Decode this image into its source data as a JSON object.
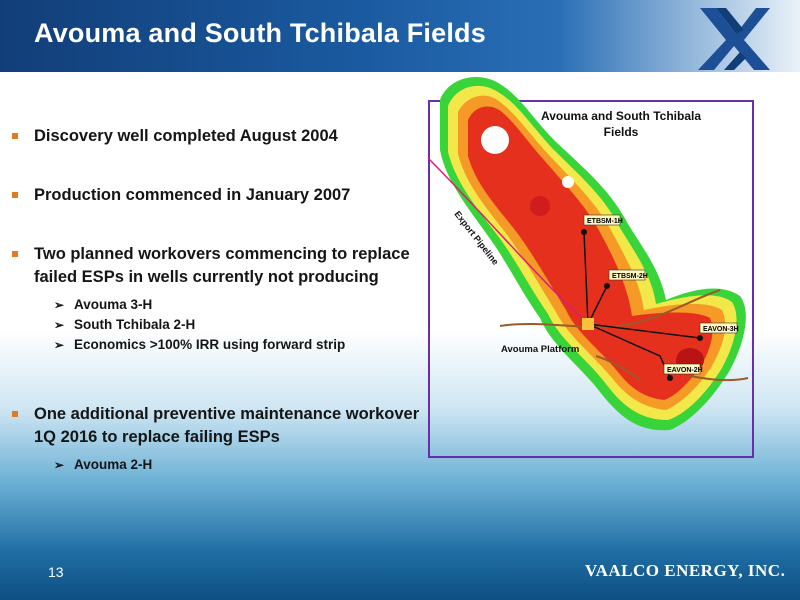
{
  "slide": {
    "title": "Avouma and South Tchibala Fields",
    "page_number": "13",
    "company": "VAALCO ENERGY, INC."
  },
  "bullets": [
    {
      "text": "Discovery well completed August 2004",
      "subs": []
    },
    {
      "text": "Production commenced in January 2007",
      "subs": []
    },
    {
      "text": "Two planned workovers commencing to replace failed ESPs in wells currently not producing",
      "subs": [
        "Avouma 3-H",
        "South Tchibala 2-H",
        "Economics >100% IRR using forward strip"
      ]
    },
    {
      "text": "One additional preventive maintenance workover 1Q 2016 to replace failing ESPs",
      "subs": [
        "Avouma 2-H"
      ]
    }
  ],
  "map": {
    "title_line1": "Avouma and South Tchibala",
    "title_line2": "Fields",
    "pipeline_label": "Export Pipeline",
    "platform_label": "Avouma Platform",
    "wells": [
      "ETBSM-1H",
      "ETBSM-2H",
      "EAVON-3H",
      "EAVON-2H"
    ]
  },
  "colors": {
    "header_dark": "#123e78",
    "bullet_marker": "#e07b21",
    "map_border": "#6a2ea8",
    "pipeline": "#e0197a"
  }
}
